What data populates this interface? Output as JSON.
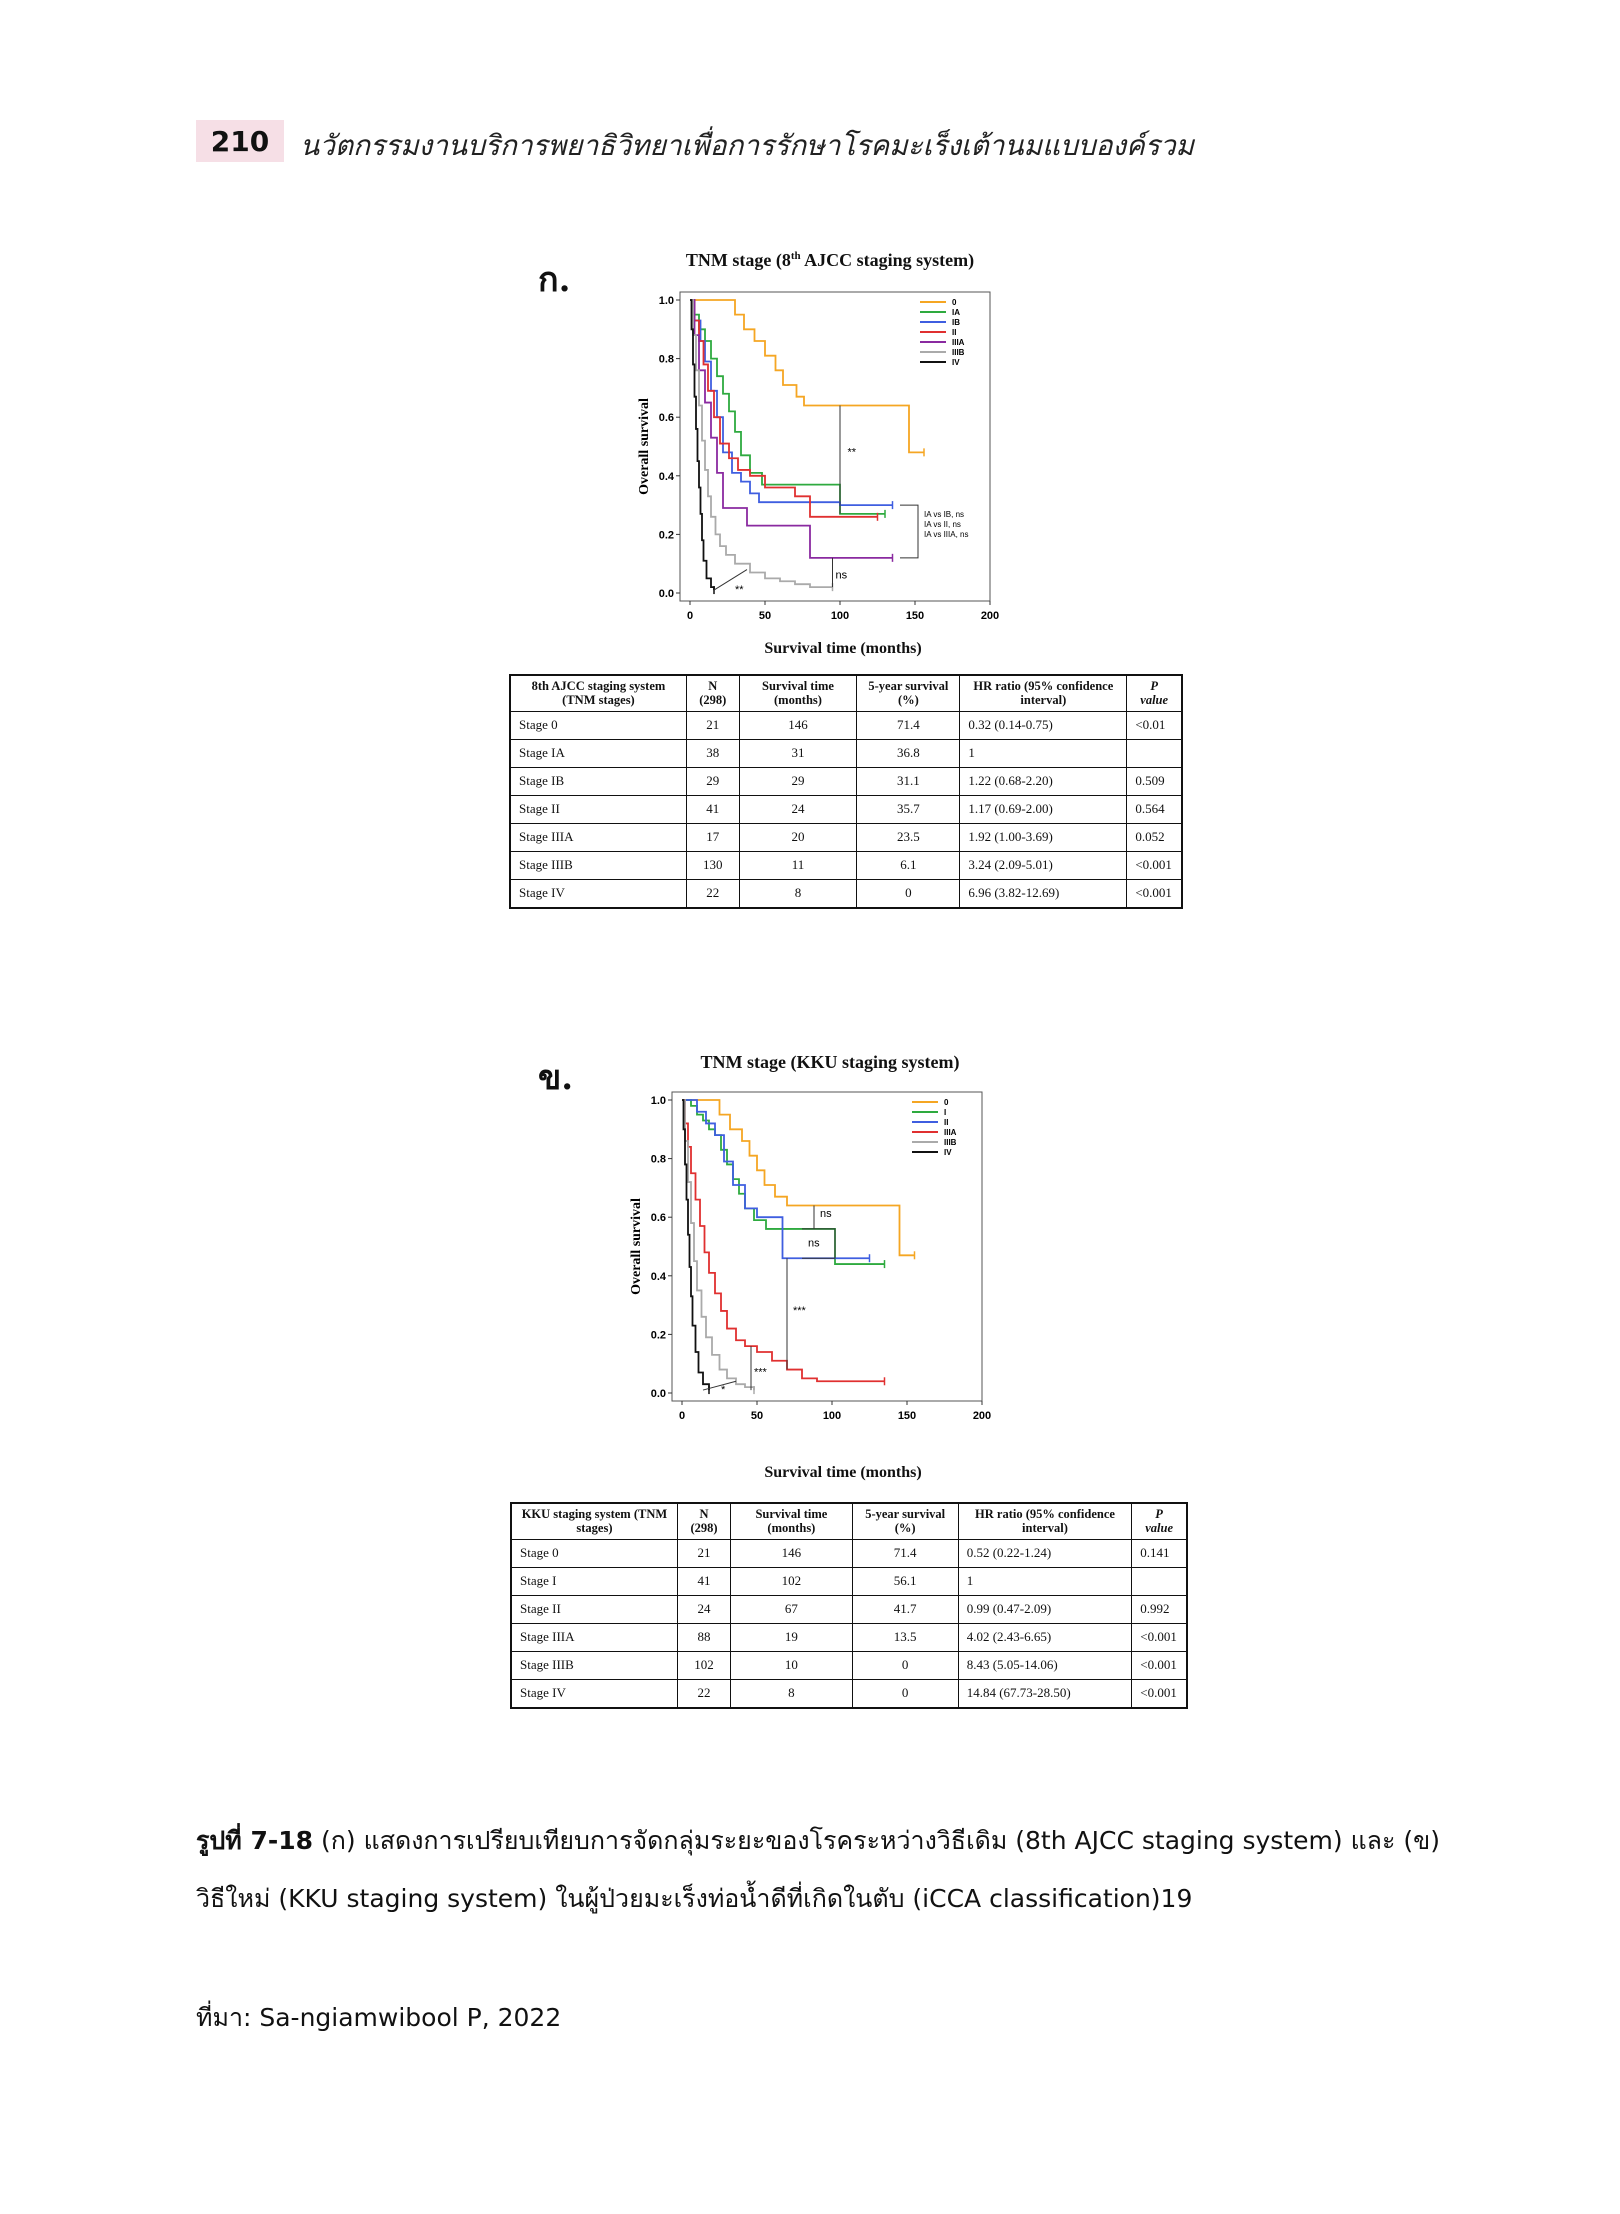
{
  "header": {
    "page_number": "210",
    "running_title": "นวัตกรรมงานบริการพยาธิวิทยาเพื่อการรักษาโรคมะเร็งเต้านมแบบองค์รวม"
  },
  "panel_a": {
    "label": "ก.",
    "chart_title": "TNM stage (8th AJCC staging system)",
    "xlabel": "Survival time (months)",
    "ylabel": "Overall survival",
    "annotation_note": [
      "IA vs IB, ns",
      "IA vs II, ns",
      "IA vs IIIA, ns"
    ],
    "table": {
      "headers": [
        "8th AJCC staging system (TNM stages)",
        "N (298)",
        "Survival time (months)",
        "5-year survival (%)",
        "HR ratio (95% confidence interval)",
        "P value"
      ],
      "rows": [
        [
          "Stage 0",
          "21",
          "146",
          "71.4",
          "0.32 (0.14-0.75)",
          "<0.01"
        ],
        [
          "Stage IA",
          "38",
          "31",
          "36.8",
          "1",
          ""
        ],
        [
          "Stage IB",
          "29",
          "29",
          "31.1",
          "1.22 (0.68-2.20)",
          "0.509"
        ],
        [
          "Stage II",
          "41",
          "24",
          "35.7",
          "1.17 (0.69-2.00)",
          "0.564"
        ],
        [
          "Stage IIIA",
          "17",
          "20",
          "23.5",
          "1.92 (1.00-3.69)",
          "0.052"
        ],
        [
          "Stage IIIB",
          "130",
          "11",
          "6.1",
          "3.24 (2.09-5.01)",
          "<0.001"
        ],
        [
          "Stage IV",
          "22",
          "8",
          "0",
          "6.96 (3.82-12.69)",
          "<0.001"
        ]
      ]
    }
  },
  "panel_b": {
    "label": "ข.",
    "chart_title": "TNM stage (KKU staging system)",
    "xlabel": "Survival time (months)",
    "ylabel": "Overall survival",
    "table": {
      "headers": [
        "KKU staging system (TNM stages)",
        "N (298)",
        "Survival time (months)",
        "5-year survival (%)",
        "HR ratio (95% confidence interval)",
        "P value"
      ],
      "rows": [
        [
          "Stage 0",
          "21",
          "146",
          "71.4",
          "0.52 (0.22-1.24)",
          "0.141"
        ],
        [
          "Stage I",
          "41",
          "102",
          "56.1",
          "1",
          ""
        ],
        [
          "Stage II",
          "24",
          "67",
          "41.7",
          "0.99 (0.47-2.09)",
          "0.992"
        ],
        [
          "Stage IIIA",
          "88",
          "19",
          "13.5",
          "4.02 (2.43-6.65)",
          "<0.001"
        ],
        [
          "Stage IIIB",
          "102",
          "10",
          "0",
          "8.43 (5.05-14.06)",
          "<0.001"
        ],
        [
          "Stage IV",
          "22",
          "8",
          "0",
          "14.84 (67.73-28.50)",
          "<0.001"
        ]
      ]
    }
  },
  "caption": {
    "label": "รูปที่ 7-18",
    "text": "(ก) แสดงการเปรียบเทียบการจัดกลุ่มระยะของโรคระหว่างวิธีเดิม (8th AJCC staging system) และ (ข) วิธีใหม่ (KKU staging system) ในผู้ป่วยมะเร็งท่อน้ำดีที่เกิดในตับ (iCCA classification)19"
  },
  "source": "ที่มา: Sa-ngiamwibool P, 2022",
  "chart_data": [
    {
      "type": "line",
      "title": "TNM stage (8th AJCC staging system)",
      "xlabel": "Survival time (months)",
      "ylabel": "Overall survival",
      "xlim": [
        0,
        200
      ],
      "ylim": [
        0,
        1.0
      ],
      "xticks": [
        0,
        50,
        100,
        150,
        200
      ],
      "yticks": [
        0.0,
        0.2,
        0.4,
        0.6,
        0.8,
        1.0
      ],
      "legend": "top-right",
      "series": [
        {
          "name": "0",
          "color": "#f5a623",
          "points": [
            [
              0,
              1
            ],
            [
              27,
              1
            ],
            [
              30,
              0.95
            ],
            [
              36,
              0.9
            ],
            [
              43,
              0.86
            ],
            [
              50,
              0.81
            ],
            [
              57,
              0.76
            ],
            [
              62,
              0.71
            ],
            [
              71,
              0.67
            ],
            [
              76,
              0.64
            ],
            [
              146,
              0.64
            ],
            [
              146,
              0.48
            ],
            [
              156,
              0.48
            ]
          ]
        },
        {
          "name": "IA",
          "color": "#2eaa3f",
          "points": [
            [
              0,
              1
            ],
            [
              3,
              0.95
            ],
            [
              6,
              0.9
            ],
            [
              10,
              0.86
            ],
            [
              14,
              0.8
            ],
            [
              18,
              0.74
            ],
            [
              22,
              0.68
            ],
            [
              26,
              0.62
            ],
            [
              30,
              0.55
            ],
            [
              34,
              0.47
            ],
            [
              40,
              0.41
            ],
            [
              48,
              0.37
            ],
            [
              60,
              0.37
            ],
            [
              70,
              0.37
            ],
            [
              100,
              0.27
            ],
            [
              130,
              0.27
            ]
          ]
        },
        {
          "name": "IB",
          "color": "#3f5ee0",
          "points": [
            [
              0,
              1
            ],
            [
              3,
              0.93
            ],
            [
              7,
              0.86
            ],
            [
              10,
              0.79
            ],
            [
              14,
              0.69
            ],
            [
              18,
              0.6
            ],
            [
              22,
              0.48
            ],
            [
              28,
              0.41
            ],
            [
              34,
              0.38
            ],
            [
              40,
              0.34
            ],
            [
              46,
              0.31
            ],
            [
              60,
              0.31
            ],
            [
              70,
              0.31
            ],
            [
              100,
              0.3
            ],
            [
              135,
              0.3
            ]
          ]
        },
        {
          "name": "II",
          "color": "#e03030",
          "points": [
            [
              0,
              1
            ],
            [
              3,
              0.93
            ],
            [
              6,
              0.86
            ],
            [
              9,
              0.78
            ],
            [
              12,
              0.69
            ],
            [
              16,
              0.6
            ],
            [
              20,
              0.51
            ],
            [
              26,
              0.46
            ],
            [
              32,
              0.42
            ],
            [
              40,
              0.4
            ],
            [
              50,
              0.36
            ],
            [
              70,
              0.33
            ],
            [
              80,
              0.33
            ],
            [
              80,
              0.26
            ],
            [
              125,
              0.26
            ]
          ]
        },
        {
          "name": "IIIA",
          "color": "#8a2aa0",
          "points": [
            [
              0,
              1
            ],
            [
              3,
              0.88
            ],
            [
              6,
              0.76
            ],
            [
              10,
              0.65
            ],
            [
              14,
              0.53
            ],
            [
              18,
              0.41
            ],
            [
              22,
              0.29
            ],
            [
              38,
              0.23
            ],
            [
              80,
              0.23
            ],
            [
              80,
              0.12
            ],
            [
              135,
              0.12
            ]
          ]
        },
        {
          "name": "IIIB",
          "color": "#aaaaaa",
          "points": [
            [
              0,
              1
            ],
            [
              2,
              0.88
            ],
            [
              4,
              0.76
            ],
            [
              6,
              0.64
            ],
            [
              8,
              0.52
            ],
            [
              10,
              0.42
            ],
            [
              12,
              0.33
            ],
            [
              14,
              0.26
            ],
            [
              17,
              0.2
            ],
            [
              20,
              0.16
            ],
            [
              24,
              0.13
            ],
            [
              30,
              0.1
            ],
            [
              40,
              0.07
            ],
            [
              50,
              0.05
            ],
            [
              60,
              0.04
            ],
            [
              70,
              0.03
            ],
            [
              80,
              0.02
            ],
            [
              95,
              0.02
            ]
          ]
        },
        {
          "name": "IV",
          "color": "#111111",
          "points": [
            [
              0,
              1
            ],
            [
              1,
              0.9
            ],
            [
              2,
              0.78
            ],
            [
              3,
              0.67
            ],
            [
              4,
              0.56
            ],
            [
              5,
              0.45
            ],
            [
              6,
              0.36
            ],
            [
              7,
              0.27
            ],
            [
              8,
              0.18
            ],
            [
              9,
              0.11
            ],
            [
              11,
              0.05
            ],
            [
              14,
              0.02
            ],
            [
              16,
              0.01
            ]
          ]
        }
      ],
      "annotations": [
        "**",
        "**",
        "ns",
        "IA vs IB, ns",
        "IA vs II, ns",
        "IA vs IIIA, ns"
      ]
    },
    {
      "type": "line",
      "title": "TNM stage (KKU staging system)",
      "xlabel": "Survival time (months)",
      "ylabel": "Overall survival",
      "xlim": [
        0,
        200
      ],
      "ylim": [
        0,
        1.0
      ],
      "xticks": [
        0,
        50,
        100,
        150,
        200
      ],
      "yticks": [
        0.0,
        0.2,
        0.4,
        0.6,
        0.8,
        1.0
      ],
      "legend": "top-right",
      "series": [
        {
          "name": "0",
          "color": "#f5a623",
          "points": [
            [
              0,
              1
            ],
            [
              20,
              1
            ],
            [
              25,
              0.95
            ],
            [
              32,
              0.9
            ],
            [
              40,
              0.86
            ],
            [
              45,
              0.81
            ],
            [
              50,
              0.76
            ],
            [
              55,
              0.71
            ],
            [
              62,
              0.67
            ],
            [
              70,
              0.64
            ],
            [
              145,
              0.64
            ],
            [
              145,
              0.47
            ],
            [
              155,
              0.47
            ]
          ]
        },
        {
          "name": "I",
          "color": "#2eaa3f",
          "points": [
            [
              0,
              1
            ],
            [
              6,
              0.98
            ],
            [
              10,
              0.95
            ],
            [
              14,
              0.93
            ],
            [
              18,
              0.9
            ],
            [
              22,
              0.88
            ],
            [
              26,
              0.83
            ],
            [
              30,
              0.78
            ],
            [
              34,
              0.73
            ],
            [
              38,
              0.68
            ],
            [
              42,
              0.63
            ],
            [
              48,
              0.59
            ],
            [
              56,
              0.56
            ],
            [
              70,
              0.56
            ],
            [
              102,
              0.56
            ],
            [
              102,
              0.44
            ],
            [
              135,
              0.44
            ]
          ]
        },
        {
          "name": "II",
          "color": "#3f5ee0",
          "points": [
            [
              0,
              1
            ],
            [
              10,
              0.96
            ],
            [
              16,
              0.92
            ],
            [
              22,
              0.88
            ],
            [
              28,
              0.79
            ],
            [
              34,
              0.71
            ],
            [
              42,
              0.63
            ],
            [
              50,
              0.6
            ],
            [
              60,
              0.6
            ],
            [
              67,
              0.46
            ],
            [
              125,
              0.46
            ]
          ]
        },
        {
          "name": "IIIA",
          "color": "#e03030",
          "points": [
            [
              0,
              1
            ],
            [
              2,
              0.92
            ],
            [
              4,
              0.84
            ],
            [
              6,
              0.75
            ],
            [
              9,
              0.66
            ],
            [
              12,
              0.57
            ],
            [
              15,
              0.48
            ],
            [
              18,
              0.41
            ],
            [
              22,
              0.34
            ],
            [
              26,
              0.28
            ],
            [
              30,
              0.22
            ],
            [
              36,
              0.18
            ],
            [
              42,
              0.16
            ],
            [
              50,
              0.14
            ],
            [
              60,
              0.11
            ],
            [
              70,
              0.08
            ],
            [
              80,
              0.05
            ],
            [
              90,
              0.04
            ],
            [
              135,
              0.04
            ]
          ]
        },
        {
          "name": "IIIB",
          "color": "#aaaaaa",
          "points": [
            [
              0,
              1
            ],
            [
              2,
              0.86
            ],
            [
              4,
              0.72
            ],
            [
              6,
              0.58
            ],
            [
              8,
              0.45
            ],
            [
              10,
              0.35
            ],
            [
              13,
              0.26
            ],
            [
              16,
              0.19
            ],
            [
              20,
              0.13
            ],
            [
              25,
              0.08
            ],
            [
              30,
              0.05
            ],
            [
              36,
              0.03
            ],
            [
              42,
              0.02
            ],
            [
              48,
              0.01
            ]
          ]
        },
        {
          "name": "IV",
          "color": "#111111",
          "points": [
            [
              0,
              1
            ],
            [
              1,
              0.9
            ],
            [
              2,
              0.78
            ],
            [
              3,
              0.66
            ],
            [
              4,
              0.54
            ],
            [
              5,
              0.43
            ],
            [
              6,
              0.33
            ],
            [
              7,
              0.23
            ],
            [
              9,
              0.14
            ],
            [
              11,
              0.07
            ],
            [
              14,
              0.03
            ],
            [
              18,
              0.01
            ]
          ]
        }
      ],
      "annotations": [
        "ns",
        "ns",
        "***",
        "***",
        "*"
      ]
    }
  ]
}
